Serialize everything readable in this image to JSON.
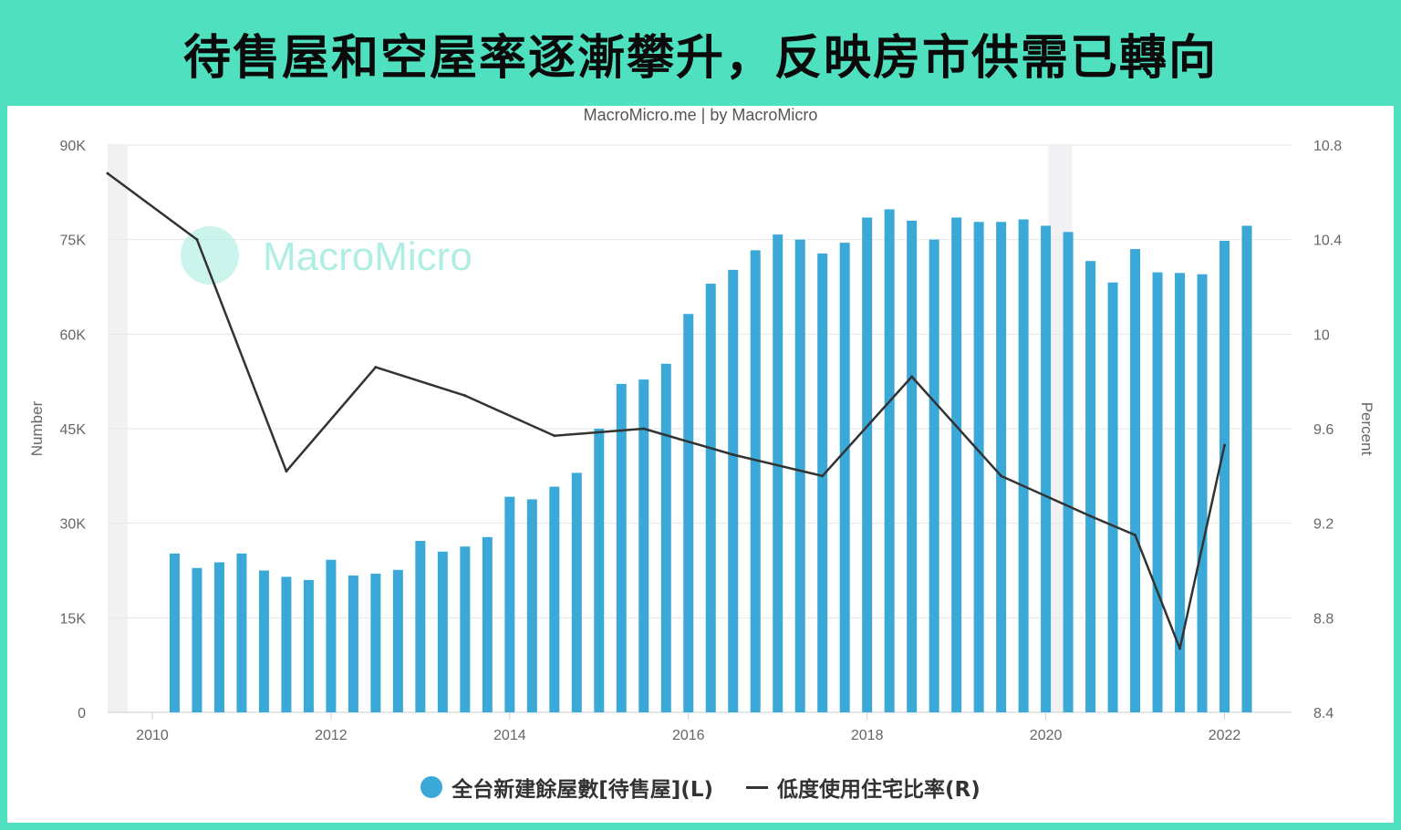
{
  "title": "待售屋和空屋率逐漸攀升，反映房市供需已轉向",
  "source": "MacroMicro.me | by MacroMicro",
  "watermark": "MacroMicro",
  "colors": {
    "bar": "#3aa9d8",
    "line": "#333333",
    "header_bg": "#4fe0c0",
    "watermark": "#a8ece0"
  },
  "chart_data": {
    "type": "bar",
    "xlabel": "",
    "ylabel_left": "Number",
    "ylabel_right": "Percent",
    "x_ticks": [
      "2010",
      "2012",
      "2014",
      "2016",
      "2018",
      "2020",
      "2022"
    ],
    "y_left_ticks": [
      "0",
      "15K",
      "30K",
      "45K",
      "60K",
      "75K",
      "90K"
    ],
    "y_right_ticks": [
      "8.4",
      "8.8",
      "9.2",
      "9.6",
      "10",
      "10.4",
      "10.8"
    ],
    "ylim_left": [
      0,
      90000
    ],
    "ylim_right": [
      8.4,
      10.8
    ],
    "xlim": [
      2009.5,
      2022.75
    ],
    "grid": true,
    "legend_position": "bottom-center",
    "series": [
      {
        "name": "全台新建餘屋數[待售屋](L)",
        "axis": "left",
        "type": "bar",
        "x": [
          2010.25,
          2010.5,
          2010.75,
          2011.0,
          2011.25,
          2011.5,
          2011.75,
          2012.0,
          2012.25,
          2012.5,
          2012.75,
          2013.0,
          2013.25,
          2013.5,
          2013.75,
          2014.0,
          2014.25,
          2014.5,
          2014.75,
          2015.0,
          2015.25,
          2015.5,
          2015.75,
          2016.0,
          2016.25,
          2016.5,
          2016.75,
          2017.0,
          2017.25,
          2017.5,
          2017.75,
          2018.0,
          2018.25,
          2018.5,
          2018.75,
          2019.0,
          2019.25,
          2019.5,
          2019.75,
          2020.0,
          2020.25,
          2020.5,
          2020.75,
          2021.0,
          2021.25,
          2021.5,
          2021.75,
          2022.0,
          2022.25
        ],
        "values": [
          25200,
          22900,
          23800,
          25200,
          22500,
          21500,
          21000,
          24200,
          21700,
          22000,
          22600,
          27200,
          25500,
          26300,
          27800,
          34200,
          33800,
          35800,
          38000,
          45000,
          52100,
          52800,
          55300,
          63200,
          68000,
          70200,
          73300,
          75800,
          75000,
          72800,
          74500,
          78500,
          79800,
          78000,
          75000,
          78500,
          77800,
          77800,
          78200,
          77200,
          76200,
          71600,
          68200,
          73500,
          69800,
          69700,
          69500,
          74800,
          77200
        ]
      },
      {
        "name": "低度使用住宅比率(R)",
        "axis": "right",
        "type": "line",
        "x": [
          2009.5,
          2010.5,
          2011.5,
          2012.5,
          2013.5,
          2014.5,
          2015.5,
          2016.5,
          2017.5,
          2018.5,
          2019.5,
          2020.5,
          2021.0,
          2021.5,
          2022.0
        ],
        "values": [
          10.68,
          10.4,
          9.42,
          9.86,
          9.74,
          9.57,
          9.6,
          9.49,
          9.4,
          9.82,
          9.4,
          9.23,
          9.15,
          8.67,
          9.53
        ]
      }
    ]
  }
}
